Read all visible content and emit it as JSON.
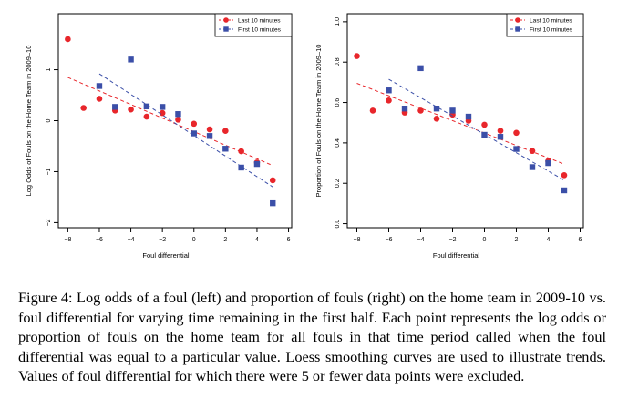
{
  "chart_data": [
    {
      "type": "scatter",
      "title": "",
      "xlabel": "Foul differential",
      "ylabel": "Log Odds of Fouls on the Home Team in 2009–10",
      "xlim": [
        -8.6,
        6.2
      ],
      "ylim": [
        -2.1,
        2.1
      ],
      "xticks": [
        -8,
        -6,
        -4,
        -2,
        0,
        2,
        4,
        6
      ],
      "yticks": [
        -2,
        -1,
        0,
        1
      ],
      "grid": false,
      "legend_position": "top-right",
      "series": [
        {
          "name": "Last 10 minutes",
          "color": "#e8262b",
          "marker": "circle",
          "points": [
            [
              -8,
              1.6
            ],
            [
              -7,
              0.25
            ],
            [
              -6,
              0.43
            ],
            [
              -5,
              0.2
            ],
            [
              -4,
              0.22
            ],
            [
              -3,
              0.08
            ],
            [
              -2,
              0.15
            ],
            [
              -1,
              0.02
            ],
            [
              0,
              -0.06
            ],
            [
              1,
              -0.17
            ],
            [
              2,
              -0.2
            ],
            [
              3,
              -0.6
            ],
            [
              4,
              -0.82
            ],
            [
              5,
              -1.17
            ]
          ],
          "trend": [
            [
              -8,
              0.85
            ],
            [
              5,
              -0.88
            ]
          ]
        },
        {
          "name": "First 10 minutes",
          "color": "#3b4fa8",
          "marker": "square",
          "points": [
            [
              -6,
              0.68
            ],
            [
              -5,
              0.27
            ],
            [
              -4,
              1.2
            ],
            [
              -3,
              0.28
            ],
            [
              -2,
              0.27
            ],
            [
              -1,
              0.13
            ],
            [
              0,
              -0.25
            ],
            [
              1,
              -0.3
            ],
            [
              2,
              -0.55
            ],
            [
              3,
              -0.92
            ],
            [
              4,
              -0.85
            ],
            [
              5,
              -1.62
            ]
          ],
          "trend": [
            [
              -6,
              0.92
            ],
            [
              5,
              -1.3
            ]
          ]
        }
      ]
    },
    {
      "type": "scatter",
      "title": "",
      "xlabel": "Foul differential",
      "ylabel": "Proportion of Fouls on the Home Team in 2009–10",
      "xlim": [
        -8.6,
        6.2
      ],
      "ylim": [
        -0.02,
        1.04
      ],
      "xticks": [
        -8,
        -6,
        -4,
        -2,
        0,
        2,
        4,
        6
      ],
      "yticks": [
        0.0,
        0.2,
        0.4,
        0.6,
        0.8,
        1.0
      ],
      "ytick_labels": [
        "0.0",
        "0.2",
        "0.4",
        "0.6",
        "0.8",
        "1.0"
      ],
      "grid": false,
      "legend_position": "top-right",
      "series": [
        {
          "name": "Last 10 minutes",
          "color": "#e8262b",
          "marker": "circle",
          "points": [
            [
              -8,
              0.83
            ],
            [
              -7,
              0.56
            ],
            [
              -6,
              0.61
            ],
            [
              -5,
              0.55
            ],
            [
              -4,
              0.56
            ],
            [
              -3,
              0.52
            ],
            [
              -2,
              0.54
            ],
            [
              -1,
              0.51
            ],
            [
              0,
              0.49
            ],
            [
              1,
              0.46
            ],
            [
              2,
              0.45
            ],
            [
              3,
              0.36
            ],
            [
              4,
              0.31
            ],
            [
              5,
              0.24
            ]
          ],
          "trend": [
            [
              -8,
              0.695
            ],
            [
              5,
              0.295
            ]
          ]
        },
        {
          "name": "First 10 minutes",
          "color": "#3b4fa8",
          "marker": "square",
          "points": [
            [
              -6,
              0.66
            ],
            [
              -5,
              0.57
            ],
            [
              -4,
              0.77
            ],
            [
              -3,
              0.57
            ],
            [
              -2,
              0.56
            ],
            [
              -1,
              0.53
            ],
            [
              0,
              0.44
            ],
            [
              1,
              0.43
            ],
            [
              2,
              0.37
            ],
            [
              3,
              0.28
            ],
            [
              4,
              0.3
            ],
            [
              5,
              0.165
            ]
          ],
          "trend": [
            [
              -6,
              0.715
            ],
            [
              5,
              0.215
            ]
          ]
        }
      ]
    }
  ],
  "caption": "Figure 4: Log odds of a foul (left) and proportion of fouls (right) on the home team in 2009-10 vs. foul differential for varying time remaining in the first half. Each point represents the log odds or proportion of fouls on the home team for all fouls in that time period called when the foul differential was equal to a particular value. Loess smoothing curves are used to illustrate trends. Values of foul differential for which there were 5 or fewer data points were excluded."
}
